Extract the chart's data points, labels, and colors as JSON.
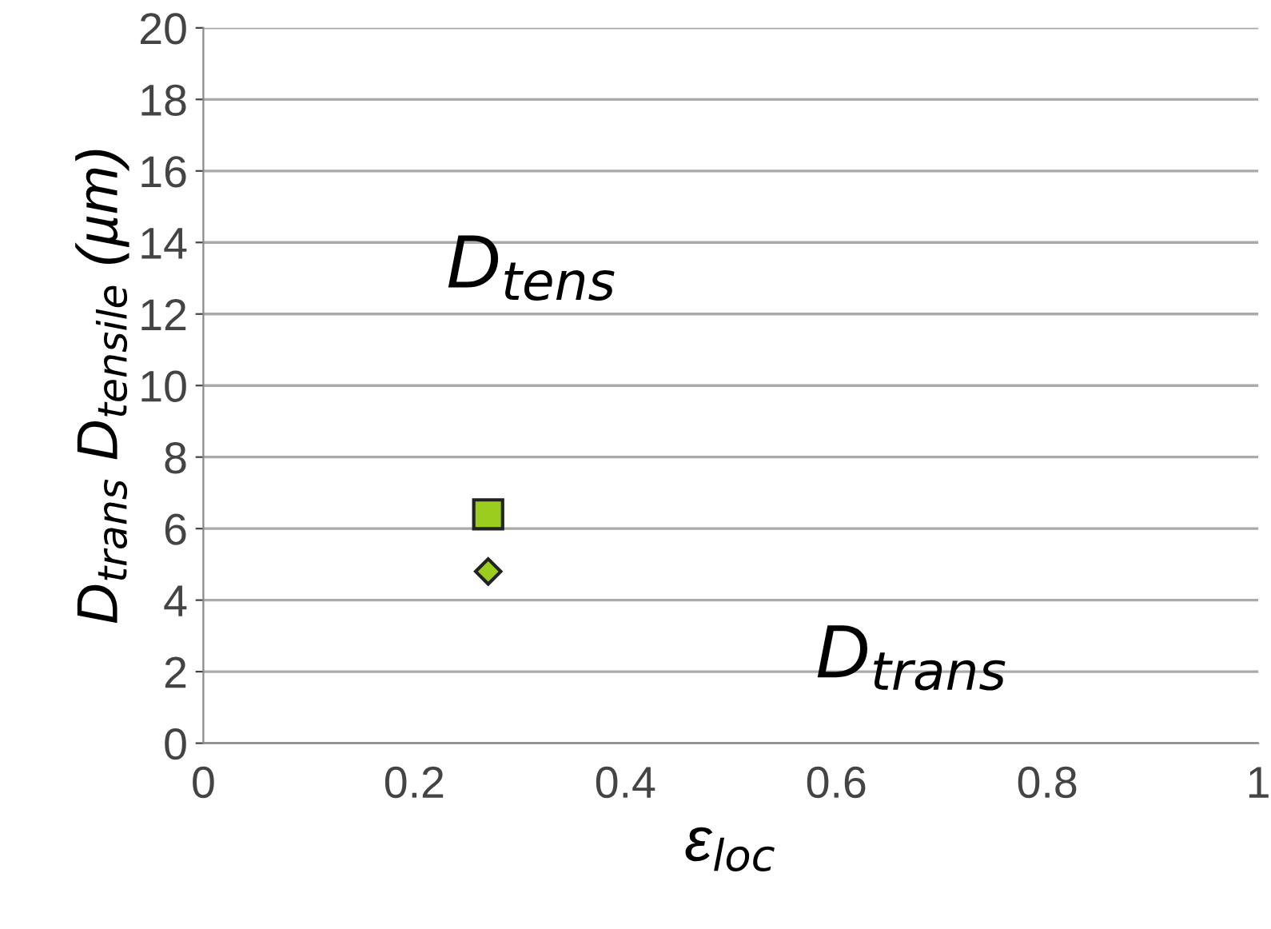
{
  "chart_data": {
    "type": "scatter",
    "xlabel": "ε$_{loc}$",
    "ylabel": "D$_{trans}$ D$_{tensile}$ (µm)",
    "x": [
      0.27
    ],
    "series": [
      {
        "color": "#9acd1e",
        "values": [
          6.4
        ],
        "marker": "square"
      },
      {
        "color": "#9acd1e",
        "values": [
          4.8
        ],
        "marker": "diamond"
      }
    ],
    "annotations": [
      "D$_{tens}$",
      "D$_{trans}$"
    ],
    "xlim": [
      0,
      1
    ],
    "xticks": [
      0,
      0.2,
      0.4,
      0.6,
      0.8,
      1
    ],
    "ylim": [
      0,
      20
    ],
    "yticks": [
      0,
      2,
      4,
      6,
      8,
      10,
      12,
      14,
      16,
      18,
      20
    ],
    "grid": "y",
    "legend": false
  }
}
